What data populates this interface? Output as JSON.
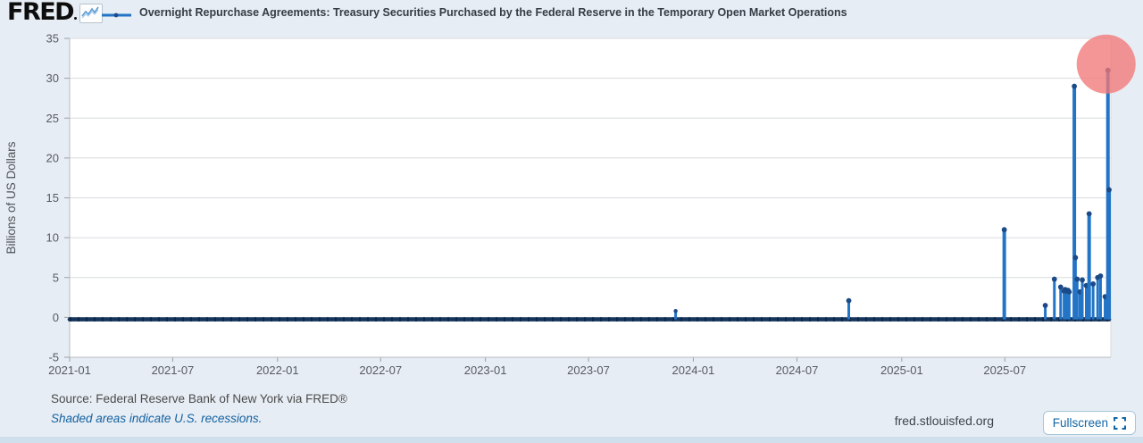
{
  "header": {
    "logo_text": "FRED",
    "series_title": "Overnight Repurchase Agreements: Treasury Securities Purchased by the Federal Reserve in the Temporary Open Market Operations"
  },
  "footer": {
    "source": "Source: Federal Reserve Bank of New York via FRED®",
    "recession_note": "Shaded areas indicate U.S. recessions.",
    "site_url": "fred.stlouisfed.org",
    "fullscreen_label": "Fullscreen"
  },
  "icons": {
    "logo_chart_icon": "line-chart-icon",
    "legend_marker": "line-with-dot-marker",
    "fullscreen_icon": "expand-corners-icon"
  },
  "colors": {
    "page_bg": "#e7edf4",
    "plot_bg": "#ffffff",
    "grid_gray": "#d7dbde",
    "axis_gray": "#b7bcc1",
    "tick_text": "#565b60",
    "series_blue": "#2374c6",
    "marker_navy": "#1c4a86",
    "baseline_navy": "#16355d",
    "link_blue": "#1261a0",
    "highlight_pink": "rgba(242,121,121,0.78)",
    "bottom_band": "#cfdfec"
  },
  "chart_data": {
    "type": "line",
    "title": "Overnight Repurchase Agreements: Treasury Securities Purchased by the Federal Reserve in the Temporary Open Market Operations",
    "xlabel": "",
    "ylabel": "Billions of US Dollars",
    "ylim": [
      -5,
      35
    ],
    "yticks": [
      35,
      30,
      25,
      20,
      15,
      10,
      5,
      0,
      -5
    ],
    "xticks": [
      "2021-01",
      "2021-07",
      "2022-01",
      "2022-07",
      "2023-01",
      "2023-07",
      "2024-01",
      "2024-07",
      "2025-01",
      "2025-07"
    ],
    "x_start": "2021-01-01",
    "x_end": "2025-12-31",
    "grid": "horizontal",
    "legend_position": "top",
    "baseline": {
      "value": 0,
      "note": "series is ~0 for nearly every day from 2021-01 through mid-2025, drawn as a dense dotted dark line at the zero gridline"
    },
    "spikes": [
      {
        "date": "2023-12-01",
        "value": 0.8
      },
      {
        "date": "2024-09-30",
        "value": 2.1
      },
      {
        "date": "2025-06-30",
        "value": 11
      },
      {
        "date": "2025-09-10",
        "value": 1.5
      },
      {
        "date": "2025-09-26",
        "value": 4.8
      },
      {
        "date": "2025-10-07",
        "value": 3.8
      },
      {
        "date": "2025-10-13",
        "value": 3.3
      },
      {
        "date": "2025-10-15",
        "value": 3.5
      },
      {
        "date": "2025-10-17",
        "value": 3.3
      },
      {
        "date": "2025-10-20",
        "value": 3.4
      },
      {
        "date": "2025-10-22",
        "value": 3.2
      },
      {
        "date": "2025-10-31",
        "value": 29
      },
      {
        "date": "2025-11-02",
        "value": 7.5
      },
      {
        "date": "2025-11-05",
        "value": 4.8
      },
      {
        "date": "2025-11-10",
        "value": 3.2
      },
      {
        "date": "2025-11-14",
        "value": 4.7
      },
      {
        "date": "2025-11-21",
        "value": 4.0
      },
      {
        "date": "2025-11-26",
        "value": 13
      },
      {
        "date": "2025-12-03",
        "value": 4.2
      },
      {
        "date": "2025-12-11",
        "value": 5.0
      },
      {
        "date": "2025-12-16",
        "value": 5.2
      },
      {
        "date": "2025-12-24",
        "value": 2.6
      },
      {
        "date": "2025-12-29",
        "value": 31
      },
      {
        "date": "2025-12-31",
        "value": 16
      }
    ],
    "highlight": {
      "date": "2025-12-29",
      "value": 31,
      "radius": 33
    }
  }
}
